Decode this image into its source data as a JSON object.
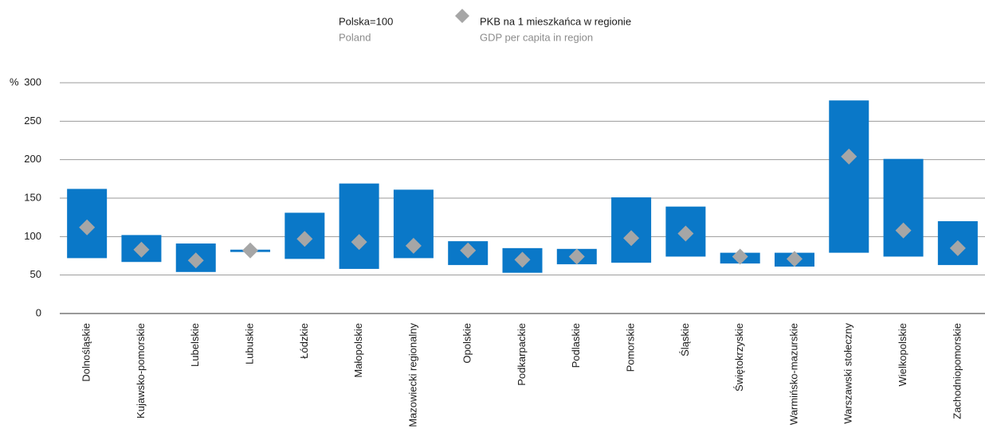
{
  "chart_data": {
    "type": "floating_bar",
    "note": "Polska=100",
    "note_en": "Poland",
    "y_unit": "%",
    "categories": [
      "Dolnośląskie",
      "Kujawsko-pomorskie",
      "Lubelskie",
      "Lubuskie",
      "Łódzkie",
      "Małopolskie",
      "Mazowiecki regionalny",
      "Opolskie",
      "Podkarpackie",
      "Podlaskie",
      "Pomorskie",
      "Śląskie",
      "Świętokrzyskie",
      "Warmińsko-mazurskie",
      "Warszawski stołeczny",
      "Wielkopolskie",
      "Zachodniopomorskie"
    ],
    "bar_low": [
      72,
      67,
      54,
      80,
      71,
      58,
      72,
      63,
      53,
      64,
      66,
      74,
      65,
      61,
      79,
      74,
      63
    ],
    "bar_high": [
      162,
      102,
      91,
      83,
      131,
      169,
      161,
      94,
      85,
      84,
      151,
      139,
      79,
      79,
      277,
      201,
      120
    ],
    "bar_color": "#0a78c8",
    "series": [
      {
        "name": "PKB na 1 mieszkańca w regionie",
        "name_en": "GDP per capita in region",
        "color": "#a6a6a6",
        "values": [
          112,
          83,
          69,
          82,
          97,
          93,
          88,
          82,
          70,
          74,
          98,
          104,
          74,
          71,
          204,
          108,
          85
        ]
      }
    ],
    "ylim": [
      0,
      300
    ],
    "yticks": [
      0,
      50,
      100,
      150,
      200,
      250,
      300
    ],
    "grid": true
  }
}
